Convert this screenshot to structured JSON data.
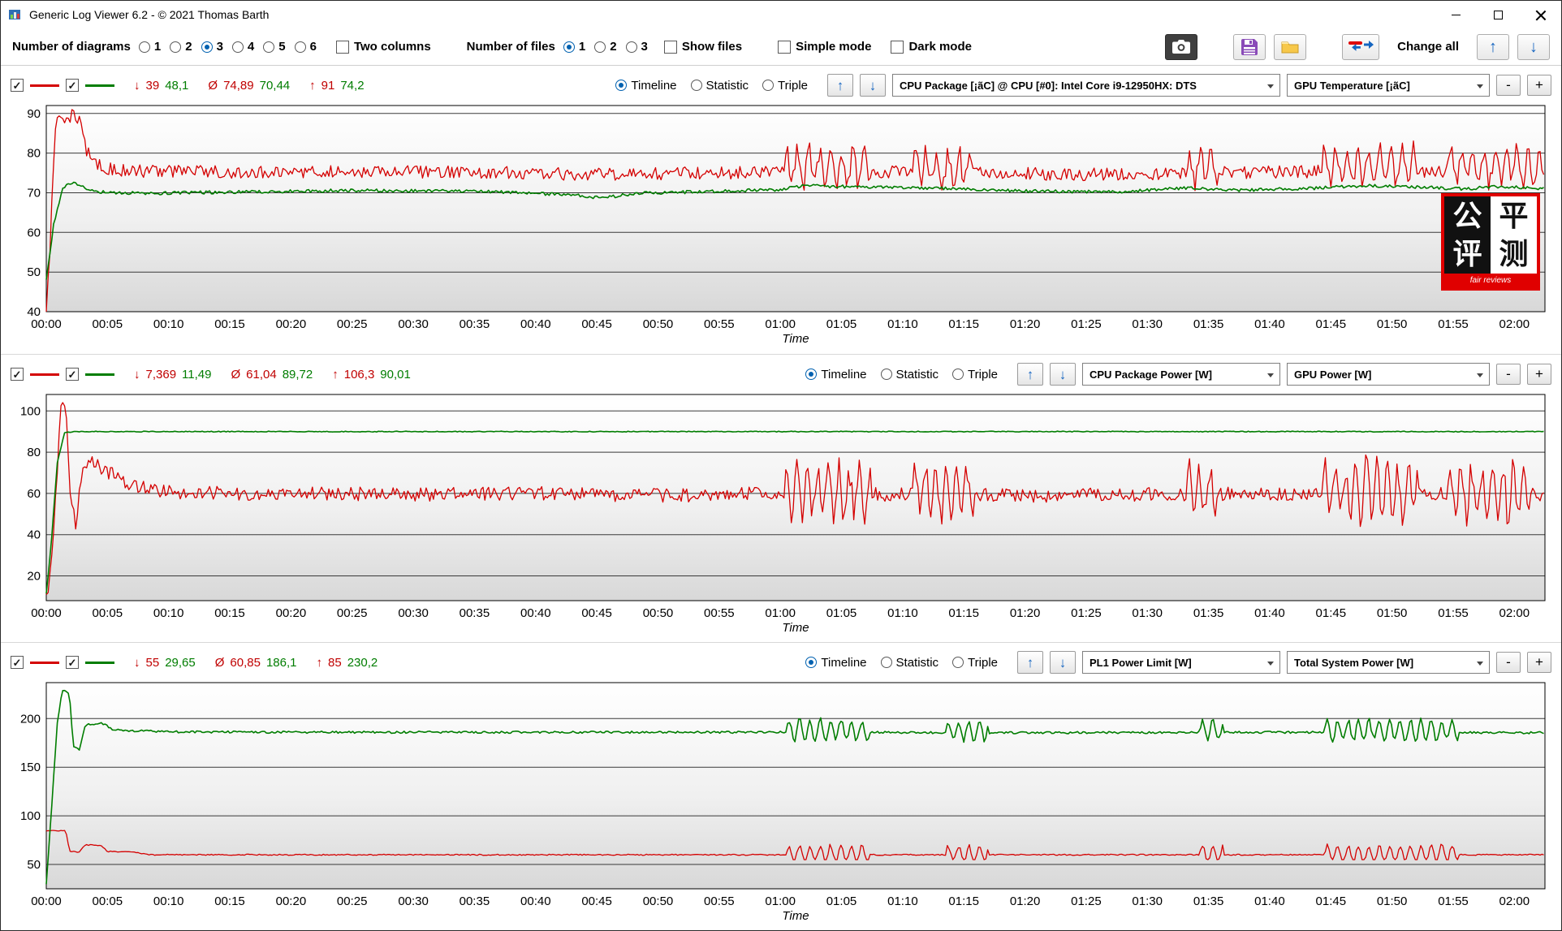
{
  "window": {
    "title": "Generic Log Viewer 6.2 - © 2021 Thomas Barth"
  },
  "glyphs": {
    "check": "✓",
    "up": "↑",
    "down": "↓",
    "min": "↓",
    "avg": "Ø",
    "max": "↑"
  },
  "icons": {
    "app": "app-logo-icon",
    "camera": "camera-icon",
    "save": "floppy-disk-icon",
    "open": "folder-icon",
    "line_refresh": "line-color-swap-icon",
    "move_up": "up-arrow-icon",
    "move_down": "down-arrow-icon",
    "dropdown": "dropdown-arrow-icon"
  },
  "toolbar": {
    "diagrams_label": "Number of diagrams",
    "diagram_options": [
      "1",
      "2",
      "3",
      "4",
      "5",
      "6"
    ],
    "diagrams_selected": "3",
    "two_columns_label": "Two columns",
    "files_label": "Number of files",
    "file_options": [
      "1",
      "2",
      "3"
    ],
    "files_selected": "1",
    "show_files_label": "Show files",
    "simple_mode_label": "Simple mode",
    "dark_mode_label": "Dark mode",
    "change_all_label": "Change all"
  },
  "panels": [
    {
      "stats": {
        "min_red": "39",
        "min_green": "48,1",
        "avg_red": "74,89",
        "avg_green": "70,44",
        "max_red": "91",
        "max_green": "74,2"
      },
      "modes": [
        "Timeline",
        "Statistic",
        "Triple"
      ],
      "mode_selected": "Timeline",
      "dropdown_red": "CPU Package [¡ãC] @ CPU [#0]: Intel Core i9-12950HX: DTS",
      "dropdown_green": "GPU Temperature [¡ãC]",
      "minus": "-",
      "plus": "+"
    },
    {
      "stats": {
        "min_red": "7,369",
        "min_green": "11,49",
        "avg_red": "61,04",
        "avg_green": "89,72",
        "max_red": "106,3",
        "max_green": "90,01"
      },
      "modes": [
        "Timeline",
        "Statistic",
        "Triple"
      ],
      "mode_selected": "Timeline",
      "dropdown_red": "CPU Package Power [W]",
      "dropdown_green": "GPU Power [W]",
      "minus": "-",
      "plus": "+"
    },
    {
      "stats": {
        "min_red": "55",
        "min_green": "29,65",
        "avg_red": "60,85",
        "avg_green": "186,1",
        "max_red": "85",
        "max_green": "230,2"
      },
      "modes": [
        "Timeline",
        "Statistic",
        "Triple"
      ],
      "mode_selected": "Timeline",
      "dropdown_red": "PL1 Power Limit [W]",
      "dropdown_green": "Total System Power [W]",
      "minus": "-",
      "plus": "+"
    }
  ],
  "watermark": {
    "c00": "公",
    "c01": "平",
    "c10": "评",
    "c11": "测",
    "caption": "fair reviews"
  },
  "chart_data": [
    {
      "type": "line",
      "title": "",
      "xlabel": "Time",
      "ylabel": "",
      "x_max": 122.5,
      "x_tick_interval": 5,
      "x_tick_labels": [
        "00:00",
        "00:05",
        "00:10",
        "00:15",
        "00:20",
        "00:25",
        "00:30",
        "00:35",
        "00:40",
        "00:45",
        "00:50",
        "00:55",
        "01:00",
        "01:05",
        "01:10",
        "01:15",
        "01:20",
        "01:25",
        "01:30",
        "01:35",
        "01:40",
        "01:45",
        "01:50",
        "01:55",
        "02:00"
      ],
      "ylim": [
        40,
        92
      ],
      "yticks": [
        40,
        50,
        60,
        70,
        80,
        90
      ],
      "grid": "horizontal",
      "legend_position": "top-left-controls",
      "series": [
        {
          "name": "CPU Package [¡ãC]",
          "color": "#d40000",
          "min": 39,
          "avg": 74.89,
          "max": 91,
          "noise": 1.6,
          "clamp": [
            40,
            91
          ],
          "keypoints": [
            [
              0,
              41
            ],
            [
              0.3,
              55
            ],
            [
              0.7,
              86
            ],
            [
              1,
              90.5
            ],
            [
              1.6,
              88.5
            ],
            [
              2.2,
              90
            ],
            [
              2.8,
              88
            ],
            [
              3.2,
              81
            ],
            [
              4,
              77.5
            ],
            [
              5,
              76
            ],
            [
              7,
              75.5
            ],
            [
              15,
              75.2
            ],
            [
              25,
              75.4
            ],
            [
              35,
              75.2
            ],
            [
              45,
              74.6
            ],
            [
              55,
              75
            ],
            [
              65,
              75.5
            ],
            [
              75,
              75
            ],
            [
              85,
              74.6
            ],
            [
              95,
              75
            ],
            [
              105,
              75.4
            ],
            [
              115,
              75.4
            ],
            [
              122.5,
              75.2
            ]
          ],
          "bursts": {
            "windows": [
              [
                60.3,
                67.5
              ],
              [
                70.8,
                75.8
              ],
              [
                93.2,
                95.8
              ],
              [
                104.3,
                112.2
              ],
              [
                114.6,
                122.3
              ]
            ],
            "amp": 3.8,
            "offset": 1.2,
            "period": 0.9,
            "noise": 1.6
          }
        },
        {
          "name": "GPU Temperature [¡ãC]",
          "color": "#007d00",
          "min": 48.1,
          "avg": 70.44,
          "max": 74.2,
          "noise": 0.4,
          "clamp": [
            48,
            74.2
          ],
          "keypoints": [
            [
              0,
              48
            ],
            [
              0.6,
              62
            ],
            [
              1.4,
              71.5
            ],
            [
              2.2,
              72.5
            ],
            [
              3.2,
              71.2
            ],
            [
              4.5,
              70.2
            ],
            [
              8,
              69.8
            ],
            [
              15,
              70.2
            ],
            [
              25,
              70.6
            ],
            [
              35,
              70.4
            ],
            [
              43,
              69.4
            ],
            [
              45.5,
              68.7
            ],
            [
              48,
              69.8
            ],
            [
              55,
              70.4
            ],
            [
              60,
              70.8
            ],
            [
              62,
              71.8
            ],
            [
              67,
              71.4
            ],
            [
              72,
              71.2
            ],
            [
              80,
              70.4
            ],
            [
              88,
              70.2
            ],
            [
              93,
              71.2
            ],
            [
              97,
              70.6
            ],
            [
              104,
              71.2
            ],
            [
              108,
              71.8
            ],
            [
              112,
              71.4
            ],
            [
              116,
              71
            ],
            [
              119,
              71.6
            ],
            [
              122.5,
              71
            ]
          ]
        }
      ]
    },
    {
      "type": "line",
      "title": "",
      "xlabel": "Time",
      "ylabel": "",
      "x_max": 122.5,
      "x_tick_interval": 5,
      "x_tick_labels": [
        "00:00",
        "00:05",
        "00:10",
        "00:15",
        "00:20",
        "00:25",
        "00:30",
        "00:35",
        "00:40",
        "00:45",
        "00:50",
        "00:55",
        "01:00",
        "01:05",
        "01:10",
        "01:15",
        "01:20",
        "01:25",
        "01:30",
        "01:35",
        "01:40",
        "01:45",
        "01:50",
        "01:55",
        "02:00"
      ],
      "ylim": [
        8,
        108
      ],
      "yticks": [
        20,
        40,
        60,
        80,
        100
      ],
      "grid": "horizontal",
      "legend_position": "top-left-controls",
      "series": [
        {
          "name": "CPU Package Power [W]",
          "color": "#d40000",
          "min": 7.369,
          "avg": 61.04,
          "max": 106.3,
          "noise": 3.4,
          "clamp": [
            7.4,
            106.3
          ],
          "keypoints": [
            [
              0,
              8
            ],
            [
              0.5,
              30
            ],
            [
              0.9,
              70
            ],
            [
              1.2,
              105
            ],
            [
              1.6,
              98
            ],
            [
              2,
              58
            ],
            [
              2.4,
              46
            ],
            [
              3,
              72
            ],
            [
              3.6,
              75
            ],
            [
              4.5,
              72
            ],
            [
              5.5,
              69
            ],
            [
              7,
              64
            ],
            [
              9,
              61
            ],
            [
              12,
              60
            ],
            [
              20,
              60
            ],
            [
              30,
              59.5
            ],
            [
              40,
              60
            ],
            [
              50,
              59
            ],
            [
              60,
              60
            ],
            [
              70,
              59.5
            ],
            [
              80,
              59
            ],
            [
              90,
              59.5
            ],
            [
              100,
              60
            ],
            [
              110,
              60
            ],
            [
              122.5,
              59.5
            ]
          ],
          "bursts": {
            "windows": [
              [
                60.3,
                67.5
              ],
              [
                70.8,
                75.8
              ],
              [
                93.2,
                95.8
              ],
              [
                104.3,
                112.2
              ],
              [
                114.6,
                121.5
              ]
            ],
            "amp": 12,
            "offset": 1.5,
            "period": 0.85,
            "noise": 5
          }
        },
        {
          "name": "GPU Power [W]",
          "color": "#007d00",
          "min": 11.49,
          "avg": 89.72,
          "max": 90.01,
          "noise": 0.2,
          "clamp": [
            11,
            90.2
          ],
          "keypoints": [
            [
              0,
              11.5
            ],
            [
              0.4,
              35
            ],
            [
              0.9,
              75
            ],
            [
              1.5,
              89.5
            ],
            [
              2.5,
              90
            ],
            [
              122.5,
              90
            ]
          ]
        }
      ]
    },
    {
      "type": "line",
      "title": "",
      "xlabel": "Time",
      "ylabel": "",
      "x_max": 122.5,
      "x_tick_interval": 5,
      "x_tick_labels": [
        "00:00",
        "00:05",
        "00:10",
        "00:15",
        "00:20",
        "00:25",
        "00:30",
        "00:35",
        "00:40",
        "00:45",
        "00:50",
        "00:55",
        "01:00",
        "01:05",
        "01:10",
        "01:15",
        "01:20",
        "01:25",
        "01:30",
        "01:35",
        "01:40",
        "01:45",
        "01:50",
        "01:55",
        "02:00"
      ],
      "ylim": [
        25,
        237
      ],
      "yticks": [
        50,
        100,
        150,
        200
      ],
      "grid": "horizontal",
      "legend_position": "top-left-controls",
      "series": [
        {
          "name": "PL1 Power Limit [W]",
          "color": "#d40000",
          "min": 55,
          "avg": 60.85,
          "max": 85,
          "noise": 0.6,
          "clamp": [
            55,
            85
          ],
          "keypoints": [
            [
              0,
              85
            ],
            [
              1.6,
              85
            ],
            [
              1.9,
              64
            ],
            [
              2.6,
              62
            ],
            [
              3.2,
              70
            ],
            [
              4.4,
              70
            ],
            [
              5,
              63.5
            ],
            [
              7,
              63
            ],
            [
              8.5,
              60
            ],
            [
              20,
              60
            ],
            [
              40,
              60
            ],
            [
              60,
              60
            ],
            [
              80,
              60
            ],
            [
              100,
              60
            ],
            [
              122.5,
              60
            ]
          ],
          "bursts": {
            "windows": [
              [
                60.5,
                67.3
              ],
              [
                73.5,
                77
              ],
              [
                94.3,
                96.3
              ],
              [
                104.5,
                115.5
              ]
            ],
            "amp": 8.5,
            "offset": 1,
            "period": 0.85,
            "noise": 2
          }
        },
        {
          "name": "Total System Power [W]",
          "color": "#007d00",
          "min": 29.65,
          "avg": 186.1,
          "max": 230.2,
          "noise": 1.1,
          "clamp": [
            29.6,
            230.2
          ],
          "keypoints": [
            [
              0,
              30
            ],
            [
              0.5,
              120
            ],
            [
              0.9,
              195
            ],
            [
              1.3,
              230
            ],
            [
              1.9,
              226
            ],
            [
              2.2,
              172
            ],
            [
              2.7,
              168
            ],
            [
              3.2,
              194
            ],
            [
              4.6,
              195
            ],
            [
              5.4,
              189
            ],
            [
              7,
              187.5
            ],
            [
              10,
              186.5
            ],
            [
              20,
              186
            ],
            [
              40,
              186
            ],
            [
              60,
              186
            ],
            [
              80,
              185.5
            ],
            [
              100,
              186
            ],
            [
              122.5,
              185.5
            ]
          ],
          "bursts": {
            "windows": [
              [
                60.5,
                67.3
              ],
              [
                73.5,
                77
              ],
              [
                94.3,
                96.3
              ],
              [
                104.5,
                115.5
              ]
            ],
            "amp": 10,
            "offset": 2,
            "period": 0.85,
            "noise": 2.5
          }
        }
      ]
    }
  ]
}
